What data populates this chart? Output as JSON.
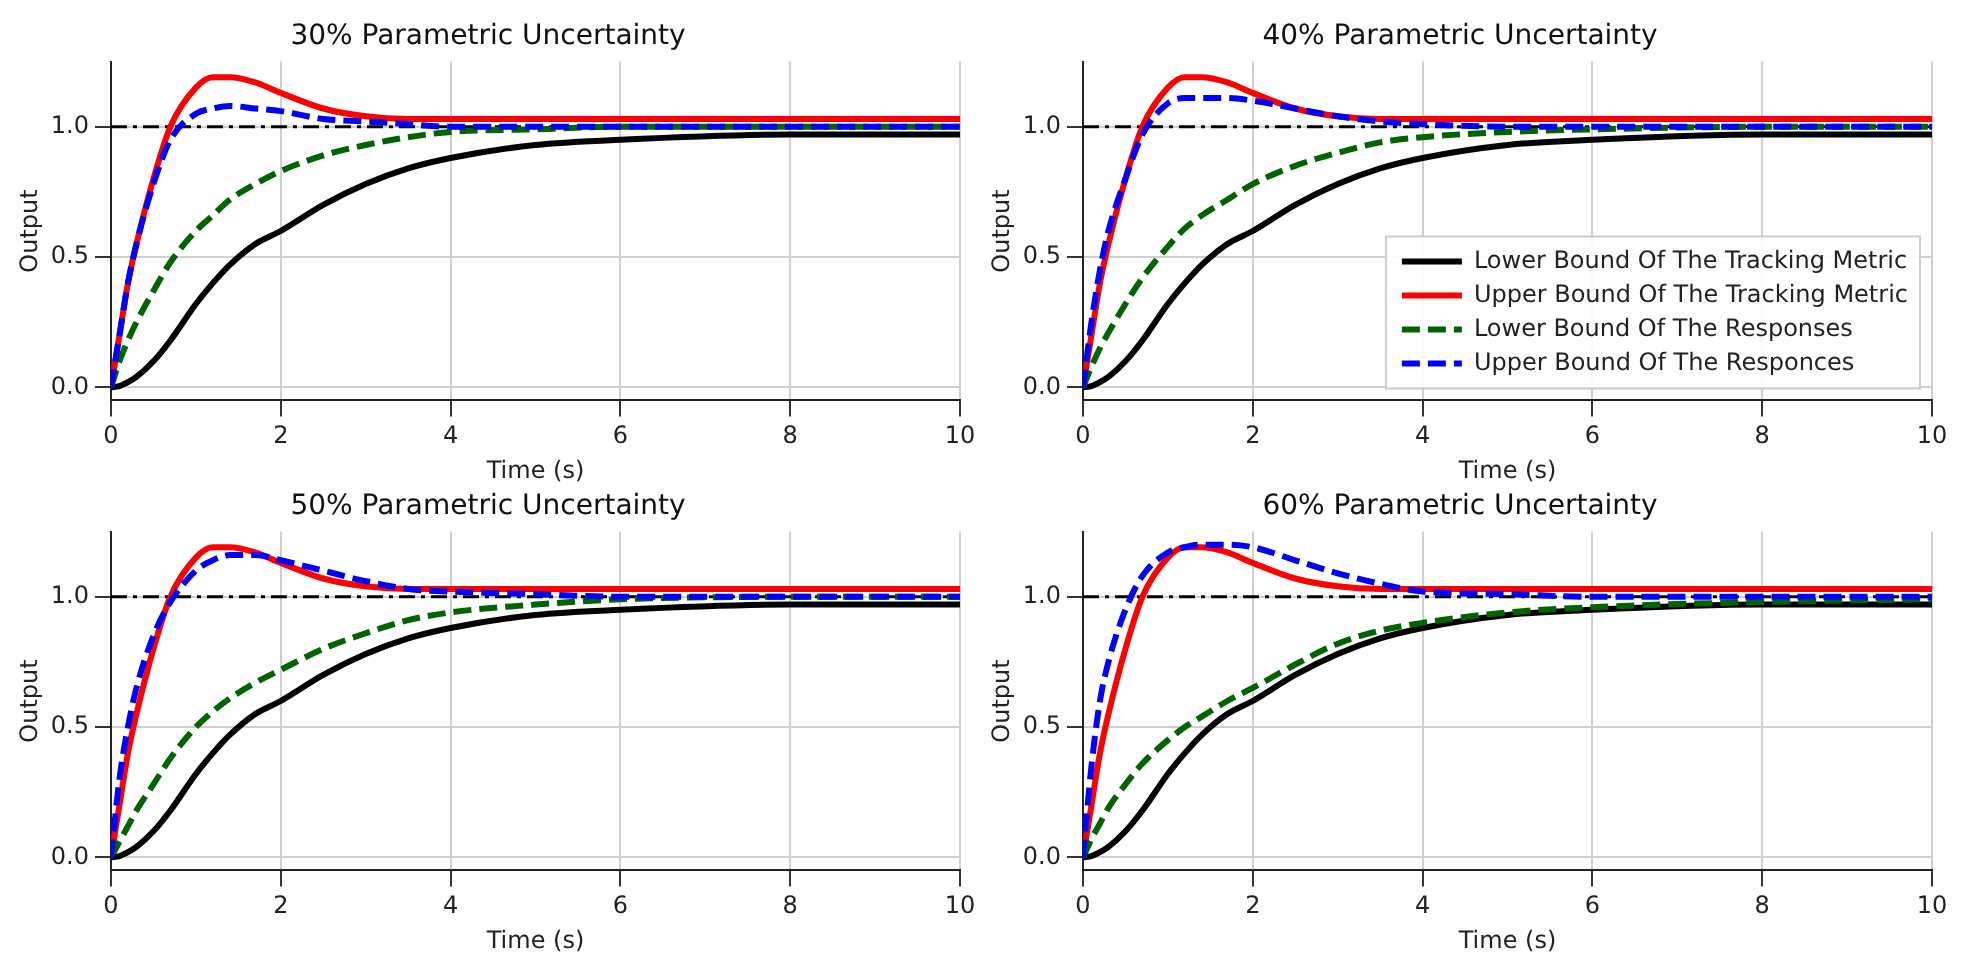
{
  "chart_data": [
    {
      "type": "line",
      "title": "30% Parametric Uncertainty",
      "xlabel": "Time (s)",
      "ylabel": "Output",
      "grid": true,
      "legend": false,
      "xlim": [
        0,
        10
      ],
      "ylim": [
        -0.05,
        1.25
      ],
      "xticks": [
        0,
        2,
        4,
        6,
        8,
        10
      ],
      "yticks": [
        {
          "value": 0,
          "label": "0.0"
        },
        {
          "value": 0.5,
          "label": "0.5"
        },
        {
          "value": 1,
          "label": "1.0"
        }
      ],
      "ref_lines": [
        {
          "axis": "y",
          "value": 1,
          "color": "#000000"
        }
      ],
      "x": [
        0,
        0.1,
        0.2,
        0.3,
        0.5,
        0.7,
        1,
        1.2,
        1.4,
        1.7,
        2,
        2.5,
        3,
        3.5,
        4,
        5,
        6,
        8,
        10
      ],
      "series": [
        {
          "color": "#000000",
          "line_style": "solid",
          "values": [
            0,
            0.005,
            0.02,
            0.04,
            0.1,
            0.18,
            0.32,
            0.4,
            0.47,
            0.55,
            0.6,
            0.7,
            0.78,
            0.84,
            0.88,
            0.93,
            0.95,
            0.97,
            0.97
          ]
        },
        {
          "color": "#ff0000",
          "line_style": "solid",
          "values": [
            0,
            0.2,
            0.4,
            0.55,
            0.8,
            1.0,
            1.15,
            1.19,
            1.19,
            1.17,
            1.13,
            1.07,
            1.04,
            1.03,
            1.03,
            1.03,
            1.03,
            1.03,
            1.03
          ]
        },
        {
          "color": "#006400",
          "line_style": "dashed",
          "values": [
            0,
            0.1,
            0.18,
            0.25,
            0.37,
            0.48,
            0.6,
            0.66,
            0.72,
            0.78,
            0.83,
            0.89,
            0.93,
            0.96,
            0.98,
            0.99,
            1.0,
            1.0,
            1.0
          ]
        },
        {
          "color": "#0000ff",
          "line_style": "dashed",
          "values": [
            0,
            0.2,
            0.4,
            0.55,
            0.78,
            0.95,
            1.05,
            1.07,
            1.08,
            1.07,
            1.06,
            1.03,
            1.02,
            1.01,
            1.0,
            1.0,
            1.0,
            1.0,
            1.0
          ]
        }
      ]
    },
    {
      "type": "line",
      "title": "40% Parametric Uncertainty",
      "xlabel": "Time (s)",
      "ylabel": "Output",
      "grid": true,
      "legend": "bottom right",
      "xlim": [
        0,
        10
      ],
      "ylim": [
        -0.05,
        1.25
      ],
      "xticks": [
        0,
        2,
        4,
        6,
        8,
        10
      ],
      "yticks": [
        {
          "value": 0,
          "label": "0.0"
        },
        {
          "value": 0.5,
          "label": "0.5"
        },
        {
          "value": 1,
          "label": "1.0"
        }
      ],
      "ref_lines": [
        {
          "axis": "y",
          "value": 1,
          "color": "#000000"
        }
      ],
      "x": [
        0,
        0.1,
        0.2,
        0.3,
        0.5,
        0.7,
        1,
        1.2,
        1.4,
        1.7,
        2,
        2.5,
        3,
        3.5,
        4,
        5,
        6,
        8,
        10
      ],
      "series": [
        {
          "name": "Lower Bound Of The Tracking Metric",
          "color": "#000000",
          "line_style": "solid",
          "values": [
            0,
            0.005,
            0.02,
            0.04,
            0.1,
            0.18,
            0.32,
            0.4,
            0.47,
            0.55,
            0.6,
            0.7,
            0.78,
            0.84,
            0.88,
            0.93,
            0.95,
            0.97,
            0.97
          ]
        },
        {
          "name": "Upper Bound Of The Tracking Metric",
          "color": "#ff0000",
          "line_style": "solid",
          "values": [
            0,
            0.2,
            0.4,
            0.55,
            0.8,
            1.0,
            1.15,
            1.19,
            1.19,
            1.17,
            1.13,
            1.07,
            1.04,
            1.03,
            1.03,
            1.03,
            1.03,
            1.03,
            1.03
          ]
        },
        {
          "name": "Lower Bound Of The Responses",
          "color": "#006400",
          "line_style": "dashed",
          "values": [
            0,
            0.08,
            0.15,
            0.21,
            0.32,
            0.42,
            0.54,
            0.61,
            0.66,
            0.72,
            0.78,
            0.85,
            0.9,
            0.94,
            0.96,
            0.98,
            0.99,
            1.0,
            1.0
          ]
        },
        {
          "name": "Upper Bound Of The Responces",
          "color": "#0000ff",
          "line_style": "dashed",
          "values": [
            0,
            0.25,
            0.45,
            0.6,
            0.8,
            0.97,
            1.09,
            1.11,
            1.11,
            1.11,
            1.1,
            1.07,
            1.04,
            1.02,
            1.01,
            1.0,
            1.0,
            1.0,
            1.0
          ]
        }
      ]
    },
    {
      "type": "line",
      "title": "50% Parametric Uncertainty",
      "xlabel": "Time (s)",
      "ylabel": "Output",
      "grid": true,
      "legend": false,
      "xlim": [
        0,
        10
      ],
      "ylim": [
        -0.05,
        1.25
      ],
      "xticks": [
        0,
        2,
        4,
        6,
        8,
        10
      ],
      "yticks": [
        {
          "value": 0,
          "label": "0.0"
        },
        {
          "value": 0.5,
          "label": "0.5"
        },
        {
          "value": 1,
          "label": "1.0"
        }
      ],
      "ref_lines": [
        {
          "axis": "y",
          "value": 1,
          "color": "#000000"
        }
      ],
      "x": [
        0,
        0.1,
        0.2,
        0.3,
        0.5,
        0.7,
        1,
        1.2,
        1.4,
        1.7,
        2,
        2.5,
        3,
        3.5,
        4,
        5,
        6,
        8,
        10
      ],
      "series": [
        {
          "color": "#000000",
          "line_style": "solid",
          "values": [
            0,
            0.005,
            0.02,
            0.04,
            0.1,
            0.18,
            0.32,
            0.4,
            0.47,
            0.55,
            0.6,
            0.7,
            0.78,
            0.84,
            0.88,
            0.93,
            0.95,
            0.97,
            0.97
          ]
        },
        {
          "color": "#ff0000",
          "line_style": "solid",
          "values": [
            0,
            0.2,
            0.4,
            0.55,
            0.8,
            1.0,
            1.15,
            1.19,
            1.19,
            1.17,
            1.13,
            1.07,
            1.04,
            1.03,
            1.03,
            1.03,
            1.03,
            1.03,
            1.03
          ]
        },
        {
          "color": "#006400",
          "line_style": "dashed",
          "values": [
            0,
            0.06,
            0.12,
            0.18,
            0.28,
            0.38,
            0.5,
            0.56,
            0.61,
            0.67,
            0.72,
            0.8,
            0.86,
            0.91,
            0.94,
            0.97,
            0.99,
            1.0,
            1.0
          ]
        },
        {
          "color": "#0000ff",
          "line_style": "dashed",
          "values": [
            0,
            0.3,
            0.5,
            0.65,
            0.85,
            0.98,
            1.1,
            1.14,
            1.16,
            1.16,
            1.14,
            1.1,
            1.06,
            1.03,
            1.02,
            1.01,
            1.0,
            1.0,
            1.0
          ]
        }
      ]
    },
    {
      "type": "line",
      "title": "60% Parametric Uncertainty",
      "xlabel": "Time (s)",
      "ylabel": "Output",
      "grid": true,
      "legend": false,
      "xlim": [
        0,
        10
      ],
      "ylim": [
        -0.05,
        1.25
      ],
      "xticks": [
        0,
        2,
        4,
        6,
        8,
        10
      ],
      "yticks": [
        {
          "value": 0,
          "label": "0.0"
        },
        {
          "value": 0.5,
          "label": "0.5"
        },
        {
          "value": 1,
          "label": "1.0"
        }
      ],
      "ref_lines": [
        {
          "axis": "y",
          "value": 1,
          "color": "#000000"
        }
      ],
      "x": [
        0,
        0.1,
        0.2,
        0.3,
        0.5,
        0.7,
        1,
        1.2,
        1.4,
        1.7,
        2,
        2.5,
        3,
        3.5,
        4,
        5,
        6,
        8,
        10
      ],
      "series": [
        {
          "color": "#000000",
          "line_style": "solid",
          "values": [
            0,
            0.005,
            0.02,
            0.04,
            0.1,
            0.18,
            0.32,
            0.4,
            0.47,
            0.55,
            0.6,
            0.7,
            0.78,
            0.84,
            0.88,
            0.93,
            0.95,
            0.97,
            0.97
          ]
        },
        {
          "color": "#ff0000",
          "line_style": "solid",
          "values": [
            0,
            0.2,
            0.4,
            0.55,
            0.8,
            1.0,
            1.15,
            1.19,
            1.19,
            1.17,
            1.13,
            1.07,
            1.04,
            1.03,
            1.03,
            1.03,
            1.03,
            1.03,
            1.03
          ]
        },
        {
          "color": "#006400",
          "line_style": "dashed",
          "values": [
            0,
            0.07,
            0.13,
            0.19,
            0.28,
            0.36,
            0.45,
            0.5,
            0.54,
            0.6,
            0.65,
            0.74,
            0.82,
            0.87,
            0.9,
            0.94,
            0.96,
            0.98,
            0.99
          ]
        },
        {
          "color": "#0000ff",
          "line_style": "dashed",
          "values": [
            0,
            0.35,
            0.6,
            0.75,
            0.95,
            1.08,
            1.17,
            1.19,
            1.2,
            1.2,
            1.19,
            1.14,
            1.09,
            1.05,
            1.02,
            1.01,
            1.0,
            1.0,
            1.0
          ]
        }
      ]
    }
  ]
}
